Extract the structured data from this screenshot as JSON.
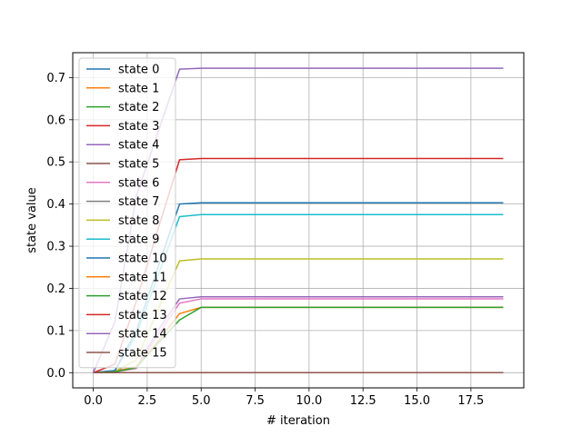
{
  "chart_data": {
    "type": "line",
    "title": "",
    "xlabel": "# iteration",
    "ylabel": "state value",
    "xlim": [
      -0.95,
      19.95
    ],
    "ylim": [
      -0.036,
      0.759
    ],
    "xticks": [
      0.0,
      2.5,
      5.0,
      7.5,
      10.0,
      12.5,
      15.0,
      17.5
    ],
    "yticks": [
      0.0,
      0.1,
      0.2,
      0.3,
      0.4,
      0.5,
      0.6,
      0.7
    ],
    "xtick_labels": [
      "0.0",
      "2.5",
      "5.0",
      "7.5",
      "10.0",
      "12.5",
      "15.0",
      "17.5"
    ],
    "ytick_labels": [
      "0.0",
      "0.1",
      "0.2",
      "0.3",
      "0.4",
      "0.5",
      "0.6",
      "0.7"
    ],
    "grid": true,
    "legend_position": "top-left",
    "x": [
      0,
      1,
      2,
      3,
      4,
      5,
      6,
      7,
      8,
      9,
      10,
      11,
      12,
      13,
      14,
      15,
      16,
      17,
      18,
      19
    ],
    "series": [
      {
        "name": "state 0",
        "color": "#1f77b4",
        "values": [
          0,
          0,
          0,
          0,
          0,
          0,
          0,
          0,
          0,
          0,
          0,
          0,
          0,
          0,
          0,
          0,
          0,
          0,
          0,
          0
        ]
      },
      {
        "name": "state 1",
        "color": "#ff7f0e",
        "values": [
          0,
          0,
          0,
          0,
          0,
          0,
          0,
          0,
          0,
          0,
          0,
          0,
          0,
          0,
          0,
          0,
          0,
          0,
          0,
          0
        ]
      },
      {
        "name": "state 2",
        "color": "#2ca02c",
        "values": [
          0,
          0,
          0,
          0,
          0,
          0,
          0,
          0,
          0,
          0,
          0,
          0,
          0,
          0,
          0,
          0,
          0,
          0,
          0,
          0
        ]
      },
      {
        "name": "state 3",
        "color": "#d62728",
        "values": [
          0,
          0,
          0,
          0,
          0,
          0,
          0,
          0,
          0,
          0,
          0,
          0,
          0,
          0,
          0,
          0,
          0,
          0,
          0,
          0
        ]
      },
      {
        "name": "state 4",
        "color": "#9467bd",
        "values": [
          0,
          0.005,
          0.012,
          0.1,
          0.175,
          0.18,
          0.18,
          0.18,
          0.18,
          0.18,
          0.18,
          0.18,
          0.18,
          0.18,
          0.18,
          0.18,
          0.18,
          0.18,
          0.18,
          0.18
        ]
      },
      {
        "name": "state 5",
        "color": "#8c564b",
        "values": [
          0,
          0,
          0,
          0,
          0,
          0,
          0,
          0,
          0,
          0,
          0,
          0,
          0,
          0,
          0,
          0,
          0,
          0,
          0,
          0
        ]
      },
      {
        "name": "state 6",
        "color": "#e377c2",
        "values": [
          0,
          0.002,
          0.01,
          0.09,
          0.165,
          0.175,
          0.175,
          0.175,
          0.175,
          0.175,
          0.175,
          0.175,
          0.175,
          0.175,
          0.175,
          0.175,
          0.175,
          0.175,
          0.175,
          0.175
        ]
      },
      {
        "name": "state 7",
        "color": "#7f7f7f",
        "values": [
          0,
          0,
          0,
          0,
          0,
          0,
          0,
          0,
          0,
          0,
          0,
          0,
          0,
          0,
          0,
          0,
          0,
          0,
          0,
          0
        ]
      },
      {
        "name": "state 8",
        "color": "#bcbd22",
        "values": [
          0,
          0.003,
          0.03,
          0.15,
          0.265,
          0.27,
          0.27,
          0.27,
          0.27,
          0.27,
          0.27,
          0.27,
          0.27,
          0.27,
          0.27,
          0.27,
          0.27,
          0.27,
          0.27,
          0.27
        ]
      },
      {
        "name": "state 9",
        "color": "#17becf",
        "values": [
          0,
          0.005,
          0.09,
          0.23,
          0.37,
          0.375,
          0.375,
          0.375,
          0.375,
          0.375,
          0.375,
          0.375,
          0.375,
          0.375,
          0.375,
          0.375,
          0.375,
          0.375,
          0.375,
          0.375
        ]
      },
      {
        "name": "state 10",
        "color": "#1f77b4",
        "values": [
          0,
          0.005,
          0.1,
          0.25,
          0.4,
          0.403,
          0.403,
          0.403,
          0.403,
          0.403,
          0.403,
          0.403,
          0.403,
          0.403,
          0.403,
          0.403,
          0.403,
          0.403,
          0.403,
          0.403
        ]
      },
      {
        "name": "state 11",
        "color": "#ff7f0e",
        "values": [
          0,
          0.002,
          0.015,
          0.075,
          0.14,
          0.155,
          0.155,
          0.155,
          0.155,
          0.155,
          0.155,
          0.155,
          0.155,
          0.155,
          0.155,
          0.155,
          0.155,
          0.155,
          0.155,
          0.155
        ]
      },
      {
        "name": "state 12",
        "color": "#2ca02c",
        "values": [
          0,
          0.002,
          0.012,
          0.07,
          0.125,
          0.155,
          0.155,
          0.155,
          0.155,
          0.155,
          0.155,
          0.155,
          0.155,
          0.155,
          0.155,
          0.155,
          0.155,
          0.155,
          0.155,
          0.155
        ]
      },
      {
        "name": "state 13",
        "color": "#d62728",
        "values": [
          0,
          0.02,
          0.17,
          0.34,
          0.505,
          0.508,
          0.508,
          0.508,
          0.508,
          0.508,
          0.508,
          0.508,
          0.508,
          0.508,
          0.508,
          0.508,
          0.508,
          0.508,
          0.508,
          0.508
        ]
      },
      {
        "name": "state 14",
        "color": "#9467bd",
        "values": [
          0,
          0.12,
          0.42,
          0.57,
          0.72,
          0.722,
          0.722,
          0.722,
          0.722,
          0.722,
          0.722,
          0.722,
          0.722,
          0.722,
          0.722,
          0.722,
          0.722,
          0.722,
          0.722,
          0.722
        ]
      },
      {
        "name": "state 15",
        "color": "#8c564b",
        "values": [
          0,
          0,
          0,
          0,
          0,
          0,
          0,
          0,
          0,
          0,
          0,
          0,
          0,
          0,
          0,
          0,
          0,
          0,
          0,
          0
        ]
      }
    ]
  }
}
